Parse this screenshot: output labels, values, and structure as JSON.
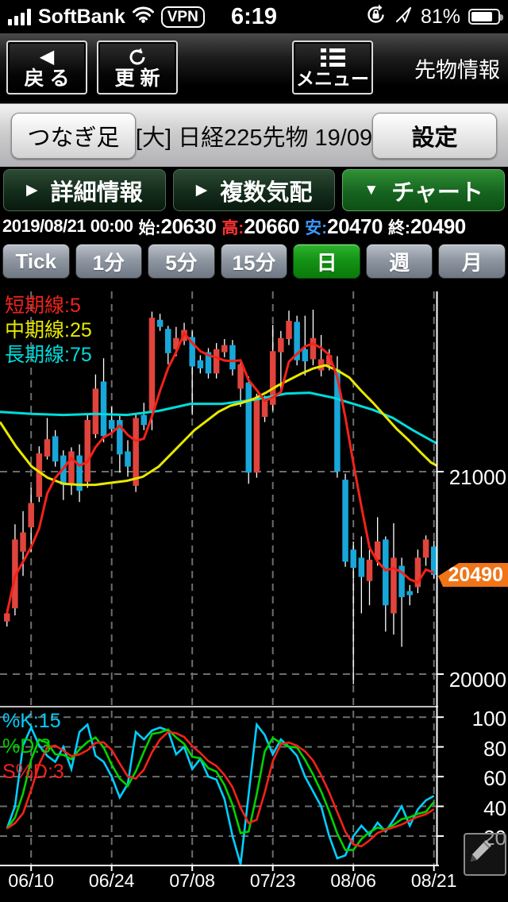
{
  "status_bar": {
    "carrier": "SoftBank",
    "vpn_badge": "VPN",
    "time": "6:19",
    "battery_pct": "81%"
  },
  "nav_bar": {
    "back_label": "戻 る",
    "refresh_label": "更 新",
    "menu_label": "メニュー",
    "screen_title": "先物情報"
  },
  "sub_header": {
    "chart_type_button": "つなぎ足",
    "instrument_label": "[大] 日経225先物 19/09",
    "settings_button": "設定"
  },
  "tabs": [
    {
      "label": "詳細情報",
      "arrow": "▶",
      "active": false
    },
    {
      "label": "複数気配",
      "arrow": "▶",
      "active": false
    },
    {
      "label": "チャート",
      "arrow": "▼",
      "active": true
    }
  ],
  "quote_bar": {
    "datetime": "2019/08/21 00:00",
    "open_label": "始:",
    "open_value": "20630",
    "high_label": "高:",
    "high_value": "20660",
    "low_label": "安:",
    "low_value": "20470",
    "close_label": "終:",
    "close_value": "20490"
  },
  "timeframes": {
    "options": [
      "Tick",
      "1分",
      "5分",
      "15分",
      "日",
      "週",
      "月"
    ],
    "active_index": 4
  },
  "chart_data": {
    "type": "candlestick",
    "title": "日経225先物 19/09 日足",
    "x_labels": [
      "06/10",
      "06/24",
      "07/08",
      "07/23",
      "08/06",
      "08/21"
    ],
    "x_label_indices": [
      3,
      13,
      23,
      33,
      43,
      53
    ],
    "price_gridlines": [
      21000,
      20000
    ],
    "price_range_top": 21890,
    "price_range_bottom": 19840,
    "current_price": "20490",
    "ohlc": [
      [
        20260,
        20320,
        20235,
        20300
      ],
      [
        20325,
        20740,
        20290,
        20665
      ],
      [
        20605,
        20805,
        20485,
        20700
      ],
      [
        20725,
        20920,
        20605,
        20845
      ],
      [
        20875,
        21125,
        20850,
        21090
      ],
      [
        21075,
        21265,
        21060,
        21160
      ],
      [
        21175,
        21205,
        21025,
        21050
      ],
      [
        21080,
        21105,
        20860,
        20935
      ],
      [
        20940,
        21120,
        20885,
        21100
      ],
      [
        21080,
        21135,
        20850,
        20905
      ],
      [
        20950,
        21280,
        20920,
        21255
      ],
      [
        21185,
        21480,
        21165,
        21410
      ],
      [
        21445,
        21560,
        21145,
        21175
      ],
      [
        21255,
        21320,
        21185,
        21210
      ],
      [
        21255,
        21275,
        20995,
        21085
      ],
      [
        21100,
        21155,
        20975,
        21025
      ],
      [
        20930,
        21290,
        20900,
        21265
      ],
      [
        21280,
        21340,
        21205,
        21230
      ],
      [
        21290,
        21790,
        21205,
        21760
      ],
      [
        21750,
        21780,
        21695,
        21715
      ],
      [
        21705,
        21720,
        21530,
        21585
      ],
      [
        21605,
        21715,
        21570,
        21660
      ],
      [
        21645,
        21735,
        21625,
        21700
      ],
      [
        21665,
        21695,
        21280,
        21520
      ],
      [
        21550,
        21575,
        21485,
        21510
      ],
      [
        21590,
        21610,
        21460,
        21485
      ],
      [
        21485,
        21635,
        21460,
        21605
      ],
      [
        21590,
        21655,
        21565,
        21625
      ],
      [
        21625,
        21650,
        21475,
        21505
      ],
      [
        21410,
        21555,
        21320,
        21530
      ],
      [
        21440,
        21470,
        20940,
        20995
      ],
      [
        20995,
        21385,
        20970,
        21360
      ],
      [
        21270,
        21375,
        21245,
        21355
      ],
      [
        21330,
        21725,
        21300,
        21595
      ],
      [
        21590,
        21695,
        21400,
        21660
      ],
      [
        21655,
        21795,
        21625,
        21745
      ],
      [
        21740,
        21770,
        21525,
        21550
      ],
      [
        21605,
        21770,
        21475,
        21545
      ],
      [
        21555,
        21800,
        21525,
        21660
      ],
      [
        21500,
        21675,
        21470,
        21555
      ],
      [
        21525,
        21605,
        21500,
        21575
      ],
      [
        21505,
        21570,
        20970,
        21000
      ],
      [
        20960,
        20990,
        20530,
        20555
      ],
      [
        20615,
        20655,
        19950,
        20525
      ],
      [
        20575,
        20680,
        20300,
        20480
      ],
      [
        20460,
        20615,
        20340,
        20565
      ],
      [
        20565,
        20775,
        20535,
        20655
      ],
      [
        20665,
        20680,
        20210,
        20340
      ],
      [
        20300,
        20745,
        20195,
        20575
      ],
      [
        20535,
        20575,
        20135,
        20380
      ],
      [
        20410,
        20440,
        20340,
        20390
      ],
      [
        20430,
        20615,
        20400,
        20575
      ],
      [
        20575,
        20685,
        20535,
        20665
      ],
      [
        20630,
        20660,
        20470,
        20490
      ]
    ],
    "ma_legend": [
      {
        "label": "短期線:5",
        "period": 5,
        "color": "#f2221a"
      },
      {
        "label": "中期線:25",
        "period": 25,
        "color": "#e8e800"
      },
      {
        "label": "長期線:75",
        "period": 75,
        "color": "#00dcdc"
      }
    ],
    "ma25": [
      [
        0,
        21245
      ],
      [
        20,
        21125
      ],
      [
        40,
        21025
      ],
      [
        60,
        20970
      ],
      [
        80,
        20940
      ],
      [
        100,
        20935
      ],
      [
        120,
        20935
      ],
      [
        140,
        20945
      ],
      [
        160,
        20955
      ],
      [
        180,
        20975
      ],
      [
        200,
        21025
      ],
      [
        215,
        21085
      ],
      [
        230,
        21145
      ],
      [
        245,
        21205
      ],
      [
        260,
        21250
      ],
      [
        275,
        21295
      ],
      [
        290,
        21325
      ],
      [
        305,
        21340
      ],
      [
        320,
        21360
      ],
      [
        335,
        21390
      ],
      [
        350,
        21425
      ],
      [
        365,
        21455
      ],
      [
        380,
        21485
      ],
      [
        395,
        21510
      ],
      [
        410,
        21525
      ],
      [
        425,
        21500
      ],
      [
        440,
        21465
      ],
      [
        455,
        21400
      ],
      [
        470,
        21340
      ],
      [
        485,
        21275
      ],
      [
        500,
        21210
      ],
      [
        515,
        21155
      ],
      [
        530,
        21095
      ],
      [
        543,
        21045
      ],
      [
        550,
        21030
      ]
    ],
    "ma75": [
      [
        0,
        21295
      ],
      [
        40,
        21285
      ],
      [
        80,
        21280
      ],
      [
        120,
        21285
      ],
      [
        160,
        21280
      ],
      [
        200,
        21300
      ],
      [
        240,
        21335
      ],
      [
        280,
        21335
      ],
      [
        320,
        21355
      ],
      [
        360,
        21385
      ],
      [
        390,
        21390
      ],
      [
        420,
        21365
      ],
      [
        445,
        21335
      ],
      [
        470,
        21305
      ],
      [
        495,
        21265
      ],
      [
        520,
        21205
      ],
      [
        543,
        21155
      ],
      [
        550,
        21140
      ]
    ],
    "stochastic": {
      "legend": [
        {
          "label": "%K:15",
          "color": "#00cfff"
        },
        {
          "label": "%D:3",
          "color": "#00d300"
        },
        {
          "label": "S%D:3",
          "color": "#f2221a"
        }
      ],
      "k_values": [
        25,
        40,
        81,
        93,
        81,
        74,
        70,
        80,
        65,
        90,
        95,
        74,
        70,
        60,
        46,
        55,
        90,
        85,
        91,
        93,
        91,
        75,
        80,
        65,
        72,
        60,
        58,
        45,
        20,
        1,
        48,
        95,
        88,
        75,
        85,
        80,
        74,
        60,
        50,
        40,
        20,
        5,
        7,
        20,
        27,
        21,
        29,
        23,
        31,
        40,
        27,
        38,
        44,
        47
      ],
      "axis_labels": [
        100,
        80,
        60,
        40,
        20
      ]
    }
  },
  "colors": {
    "candle_up": "#e0443c",
    "candle_down": "#18a7d8",
    "badge_bg": "#f07418",
    "high_label": "#ff3232",
    "low_label": "#3b97ff"
  }
}
